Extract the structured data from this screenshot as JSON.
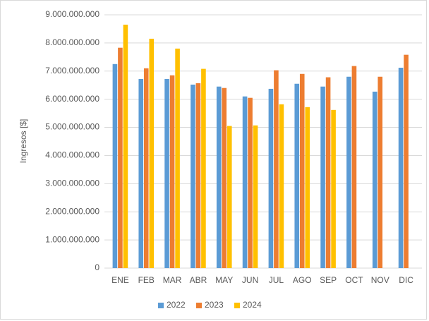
{
  "chart_data": {
    "type": "bar",
    "y_label": "Ingresos [$]",
    "categories": [
      "ENE",
      "FEB",
      "MAR",
      "ABR",
      "MAY",
      "JUN",
      "JUL",
      "AGO",
      "SEP",
      "OCT",
      "NOV",
      "DIC"
    ],
    "series": [
      {
        "name": "2022",
        "color": "#5b9bd5",
        "values": [
          7250000000,
          6720000000,
          6720000000,
          6520000000,
          6450000000,
          6100000000,
          6370000000,
          6550000000,
          6450000000,
          6800000000,
          6270000000,
          7120000000
        ]
      },
      {
        "name": "2023",
        "color": "#ed7d31",
        "values": [
          7830000000,
          7100000000,
          6850000000,
          6570000000,
          6400000000,
          6050000000,
          7030000000,
          6900000000,
          6780000000,
          7180000000,
          6800000000,
          7580000000
        ]
      },
      {
        "name": "2024",
        "color": "#ffc000",
        "values": [
          8650000000,
          8150000000,
          7800000000,
          7080000000,
          5050000000,
          5070000000,
          5820000000,
          5720000000,
          5620000000,
          null,
          null,
          null
        ]
      }
    ],
    "ylim": [
      0,
      9000000000
    ],
    "yticks": [
      0,
      {
        "value": 1000000000,
        "label": "1.000.000.000"
      },
      {
        "value": 2000000000,
        "label": "2.000.000.000"
      },
      {
        "value": 3000000000,
        "label": "3.000.000.000"
      },
      {
        "value": 4000000000,
        "label": "4.000.000.000"
      },
      {
        "value": 5000000000,
        "label": "5.000.000.000"
      },
      {
        "value": 6000000000,
        "label": "6.000.000.000"
      },
      {
        "value": 7000000000,
        "label": "7.000.000.000"
      },
      {
        "value": 8000000000,
        "label": "8.000.000.000"
      },
      {
        "value": 9000000000,
        "label": "9.000.000.000"
      }
    ],
    "grid": true,
    "legend": "bottom"
  }
}
